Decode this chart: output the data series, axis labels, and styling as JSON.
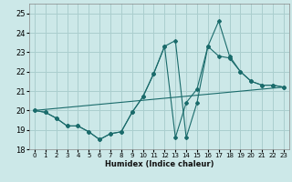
{
  "xlabel": "Humidex (Indice chaleur)",
  "xlim": [
    -0.5,
    23.5
  ],
  "ylim": [
    18.0,
    25.5
  ],
  "yticks": [
    18,
    19,
    20,
    21,
    22,
    23,
    24,
    25
  ],
  "xticks": [
    0,
    1,
    2,
    3,
    4,
    5,
    6,
    7,
    8,
    9,
    10,
    11,
    12,
    13,
    14,
    15,
    16,
    17,
    18,
    19,
    20,
    21,
    22,
    23
  ],
  "bg_color": "#cce8e8",
  "grid_color": "#aacece",
  "line_color": "#1a6b6b",
  "line1_x": [
    0,
    1,
    2,
    3,
    4,
    5,
    6,
    7,
    8,
    9,
    10,
    11,
    12,
    13,
    14,
    15,
    16,
    17,
    18,
    19,
    20,
    21,
    22,
    23
  ],
  "line1_y": [
    20.0,
    19.9,
    19.6,
    19.2,
    19.2,
    18.9,
    18.5,
    18.8,
    18.9,
    19.9,
    20.7,
    21.9,
    23.3,
    23.6,
    18.6,
    20.4,
    23.3,
    24.6,
    22.8,
    22.0,
    21.5,
    21.3,
    21.3,
    21.2
  ],
  "line2_x": [
    0,
    1,
    2,
    3,
    4,
    5,
    6,
    7,
    8,
    9,
    10,
    11,
    12,
    13,
    14,
    15,
    16,
    17,
    18,
    19,
    20,
    21,
    22,
    23
  ],
  "line2_y": [
    20.0,
    19.9,
    19.6,
    19.2,
    19.2,
    18.9,
    18.5,
    18.8,
    18.9,
    19.9,
    20.7,
    21.9,
    23.3,
    18.6,
    20.4,
    21.1,
    23.3,
    22.8,
    22.7,
    22.0,
    21.5,
    21.3,
    21.3,
    21.2
  ],
  "line3_x": [
    0,
    23
  ],
  "line3_y": [
    20.0,
    21.2
  ]
}
